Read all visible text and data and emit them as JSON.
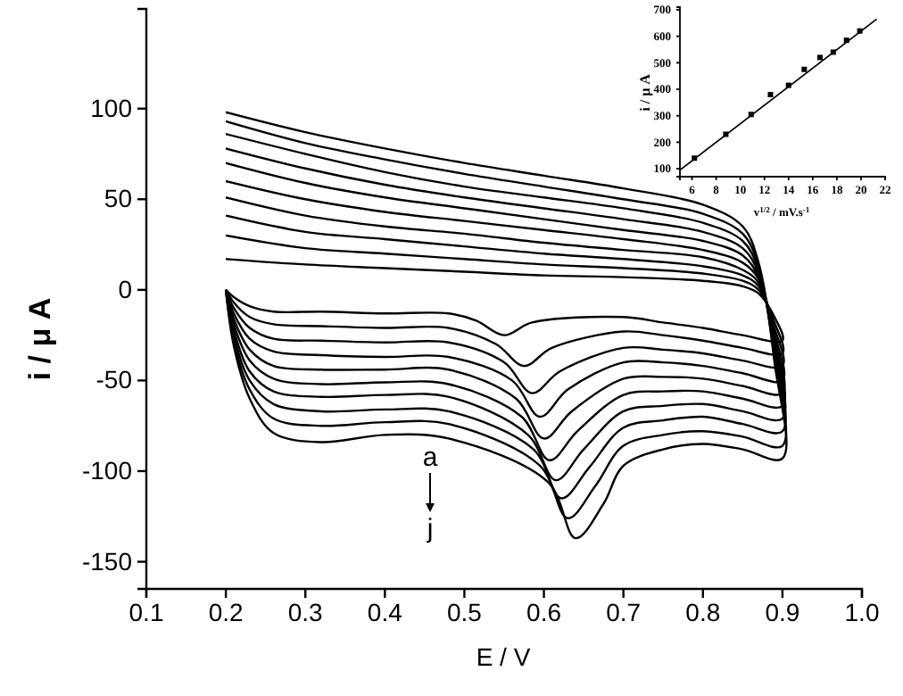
{
  "chart_data": [
    {
      "type": "line",
      "xlabel": "E / V",
      "ylabel": "i / μ A",
      "xlim": [
        0.1,
        1.0
      ],
      "ylim": [
        -165,
        155
      ],
      "xticks": [
        0.1,
        0.2,
        0.3,
        0.4,
        0.5,
        0.6,
        0.7,
        0.8,
        0.9,
        {
          "value": 1.0,
          "label": "1.0"
        }
      ],
      "yticks": [
        -150,
        -100,
        -50,
        0,
        50,
        100
      ],
      "grid": false,
      "marker": "none",
      "line_style": "solid",
      "series": [
        {
          "color": "#000000",
          "x": [
            0.2,
            0.3,
            0.4,
            0.5,
            0.6,
            0.7,
            0.8,
            0.85,
            0.87,
            0.89,
            0.9,
            0.85,
            0.8,
            0.75,
            0.7,
            0.585,
            0.55,
            0.515,
            0.48,
            0.4,
            0.32,
            0.26,
            0.23,
            0.21,
            0.2
          ],
          "values": [
            17,
            14,
            12,
            10,
            8,
            7,
            5,
            2,
            -2,
            -15,
            -28,
            -25,
            -21,
            -18,
            -15,
            -18,
            -25,
            -17,
            -13,
            -13,
            -12,
            -12,
            -9,
            -4,
            0
          ]
        },
        {
          "color": "#000000",
          "x": [
            0.2,
            0.3,
            0.4,
            0.5,
            0.6,
            0.7,
            0.8,
            0.85,
            0.87,
            0.89,
            0.9,
            0.85,
            0.8,
            0.75,
            0.7,
            0.61,
            0.575,
            0.54,
            0.48,
            0.4,
            0.32,
            0.26,
            0.23,
            0.21,
            0.2
          ],
          "values": [
            30,
            23,
            20,
            17,
            14,
            12,
            9,
            5,
            0,
            -18,
            -35,
            -32,
            -28,
            -25,
            -23,
            -32,
            -42,
            -30,
            -21,
            -21,
            -20,
            -19,
            -15,
            -7,
            0
          ]
        },
        {
          "color": "#000000",
          "x": [
            0.2,
            0.3,
            0.4,
            0.5,
            0.6,
            0.7,
            0.8,
            0.85,
            0.87,
            0.89,
            0.9,
            0.85,
            0.8,
            0.75,
            0.7,
            0.62,
            0.585,
            0.55,
            0.48,
            0.4,
            0.32,
            0.26,
            0.23,
            0.21,
            0.2
          ],
          "values": [
            41,
            32,
            28,
            24,
            20,
            17,
            13,
            8,
            2,
            -21,
            -42,
            -39,
            -35,
            -33,
            -32,
            -45,
            -57,
            -40,
            -29,
            -29,
            -28,
            -27,
            -21,
            -10,
            0
          ]
        },
        {
          "color": "#000000",
          "x": [
            0.2,
            0.3,
            0.4,
            0.5,
            0.6,
            0.7,
            0.8,
            0.85,
            0.87,
            0.89,
            0.9,
            0.85,
            0.8,
            0.75,
            0.7,
            0.63,
            0.595,
            0.56,
            0.48,
            0.4,
            0.32,
            0.26,
            0.23,
            0.21,
            0.2
          ],
          "values": [
            51,
            41,
            35,
            31,
            26,
            22,
            18,
            11,
            4,
            -24,
            -50,
            -46,
            -42,
            -40,
            -40,
            -55,
            -70,
            -50,
            -37,
            -37,
            -36,
            -34,
            -27,
            -13,
            0
          ]
        },
        {
          "color": "#000000",
          "x": [
            0.2,
            0.3,
            0.4,
            0.5,
            0.6,
            0.7,
            0.8,
            0.85,
            0.87,
            0.89,
            0.9,
            0.85,
            0.8,
            0.75,
            0.7,
            0.635,
            0.6,
            0.565,
            0.48,
            0.4,
            0.32,
            0.26,
            0.23,
            0.21,
            0.2
          ],
          "values": [
            60,
            50,
            43,
            38,
            33,
            28,
            22,
            15,
            6,
            -27,
            -57,
            -53,
            -49,
            -48,
            -49,
            -67,
            -82,
            -60,
            -44,
            -44,
            -44,
            -42,
            -33,
            -16,
            0
          ]
        },
        {
          "color": "#000000",
          "x": [
            0.2,
            0.3,
            0.4,
            0.5,
            0.6,
            0.7,
            0.8,
            0.85,
            0.87,
            0.89,
            0.9,
            0.85,
            0.8,
            0.75,
            0.7,
            0.642,
            0.607,
            0.572,
            0.48,
            0.4,
            0.32,
            0.26,
            0.23,
            0.21,
            0.2
          ],
          "values": [
            70,
            59,
            51,
            45,
            39,
            33,
            27,
            19,
            7,
            -29,
            -64,
            -60,
            -56,
            -56,
            -58,
            -78,
            -94,
            -70,
            -52,
            -51,
            -52,
            -49,
            -39,
            -19,
            0
          ]
        },
        {
          "color": "#000000",
          "x": [
            0.2,
            0.3,
            0.4,
            0.5,
            0.6,
            0.7,
            0.8,
            0.85,
            0.87,
            0.89,
            0.9,
            0.85,
            0.8,
            0.75,
            0.7,
            0.65,
            0.615,
            0.58,
            0.48,
            0.4,
            0.32,
            0.26,
            0.23,
            0.21,
            0.2
          ],
          "values": [
            78,
            67,
            58,
            51,
            45,
            39,
            32,
            23,
            9,
            -32,
            -71,
            -67,
            -63,
            -64,
            -67,
            -88,
            -105,
            -80,
            -59,
            -58,
            -59,
            -56,
            -45,
            -22,
            0
          ]
        },
        {
          "color": "#000000",
          "x": [
            0.2,
            0.3,
            0.4,
            0.5,
            0.6,
            0.7,
            0.8,
            0.85,
            0.87,
            0.89,
            0.9,
            0.85,
            0.8,
            0.75,
            0.7,
            0.657,
            0.622,
            0.587,
            0.48,
            0.4,
            0.32,
            0.26,
            0.23,
            0.21,
            0.2
          ],
          "values": [
            86,
            75,
            65,
            57,
            51,
            45,
            37,
            27,
            11,
            -35,
            -78,
            -74,
            -70,
            -72,
            -76,
            -98,
            -115,
            -88,
            -67,
            -66,
            -67,
            -63,
            -50,
            -25,
            0
          ]
        },
        {
          "color": "#000000",
          "x": [
            0.2,
            0.3,
            0.4,
            0.5,
            0.6,
            0.7,
            0.8,
            0.85,
            0.87,
            0.89,
            0.9,
            0.85,
            0.8,
            0.75,
            0.7,
            0.665,
            0.63,
            0.595,
            0.48,
            0.4,
            0.32,
            0.26,
            0.23,
            0.21,
            0.2
          ],
          "values": [
            93,
            81,
            72,
            64,
            57,
            50,
            42,
            31,
            13,
            -38,
            -86,
            -81,
            -78,
            -80,
            -86,
            -108,
            -126,
            -97,
            -74,
            -73,
            -75,
            -71,
            -55,
            -28,
            0
          ]
        },
        {
          "color": "#000000",
          "x": [
            0.2,
            0.3,
            0.4,
            0.5,
            0.6,
            0.7,
            0.8,
            0.85,
            0.87,
            0.89,
            0.9,
            0.85,
            0.8,
            0.75,
            0.7,
            0.675,
            0.64,
            0.605,
            0.48,
            0.4,
            0.32,
            0.26,
            0.23,
            0.21,
            0.2
          ],
          "values": [
            98,
            87,
            78,
            70,
            63,
            56,
            47,
            35,
            15,
            -40,
            -93,
            -88,
            -85,
            -88,
            -97,
            -118,
            -137,
            -106,
            -82,
            -80,
            -84,
            -79,
            -60,
            -31,
            0
          ]
        }
      ],
      "annotations": [
        "a",
        "j"
      ]
    },
    {
      "type": "scatter",
      "xlabel": "v$^{1/2}$ / mV.s$^{-1}$",
      "ylabel": "i / μ A",
      "xlim": [
        5,
        22
      ],
      "ylim": [
        70,
        710
      ],
      "xticks": [
        6,
        8,
        10,
        12,
        14,
        16,
        18,
        20,
        22
      ],
      "yticks": [
        100,
        200,
        300,
        400,
        500,
        600,
        700
      ],
      "grid": false,
      "marker": "square",
      "series": [
        {
          "color": "#000000",
          "x": [
            6.2,
            8.8,
            10.9,
            12.5,
            14,
            15.3,
            16.6,
            17.7,
            18.8,
            19.9
          ],
          "values": [
            140,
            230,
            305,
            380,
            415,
            475,
            520,
            540,
            585,
            620
          ]
        },
        {
          "type": "line",
          "color": "#000000",
          "marker": "none",
          "x": [
            5,
            21.3
          ],
          "values": [
            95,
            665
          ]
        }
      ]
    }
  ]
}
